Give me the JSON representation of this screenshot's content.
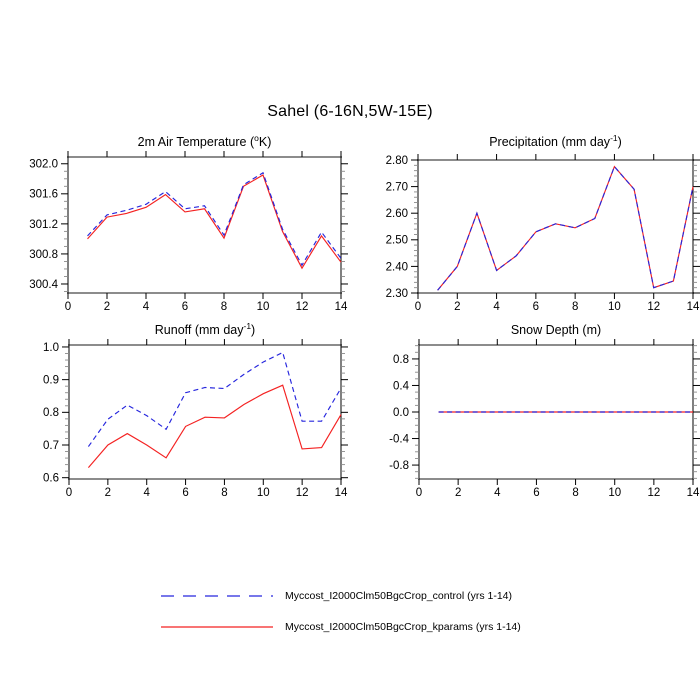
{
  "figure": {
    "title": "Sahel (6-16N,5W-15E)"
  },
  "chart_data": [
    {
      "id": "air_temperature",
      "type": "line",
      "title": "2m Air Temperature (oK)",
      "title_parts": [
        {
          "t": "2m Air Temperature ("
        },
        {
          "t": "o",
          "sup": true
        },
        {
          "t": "K)"
        }
      ],
      "xlabel": "",
      "ylabel": "",
      "x": [
        1,
        2,
        3,
        4,
        5,
        6,
        7,
        8,
        9,
        10,
        11,
        12,
        13,
        14
      ],
      "xlim": [
        0,
        14
      ],
      "x_ticks": [
        0,
        2,
        4,
        6,
        8,
        10,
        12,
        14
      ],
      "x_tick_labels": [
        "0",
        "2",
        "4",
        "6",
        "8",
        "10",
        "12",
        "14"
      ],
      "ylim": [
        300.28,
        302.09
      ],
      "y_ticks": [
        300.4,
        300.8,
        301.2,
        301.6,
        302.0
      ],
      "y_tick_labels": [
        "300.4",
        "300.8",
        "301.2",
        "301.6",
        "302.0"
      ],
      "y_minor_step": 0.1,
      "series": [
        {
          "name": "control",
          "color": "#2626dd",
          "dashed": true,
          "values": [
            301.04,
            301.32,
            301.38,
            301.46,
            301.63,
            301.4,
            301.44,
            301.05,
            301.72,
            301.88,
            301.13,
            300.65,
            301.09,
            300.74
          ]
        },
        {
          "name": "kparams",
          "color": "#f42222",
          "dashed": false,
          "values": [
            301.0,
            301.29,
            301.34,
            301.42,
            301.59,
            301.36,
            301.4,
            301.01,
            301.7,
            301.85,
            301.1,
            300.61,
            301.04,
            300.69
          ]
        }
      ]
    },
    {
      "id": "precipitation",
      "type": "line",
      "title": "Precipitation (mm day-1)",
      "title_parts": [
        {
          "t": "Precipitation (mm day"
        },
        {
          "t": "-1",
          "sup": true
        },
        {
          "t": ")"
        }
      ],
      "xlabel": "",
      "ylabel": "",
      "x": [
        1,
        2,
        3,
        4,
        5,
        6,
        7,
        8,
        9,
        10,
        11,
        12,
        13,
        14
      ],
      "xlim": [
        0,
        14
      ],
      "x_ticks": [
        0,
        2,
        4,
        6,
        8,
        10,
        12,
        14
      ],
      "x_tick_labels": [
        "0",
        "2",
        "4",
        "6",
        "8",
        "10",
        "12",
        "14"
      ],
      "ylim": [
        2.3,
        2.8
      ],
      "y_ticks": [
        2.3,
        2.4,
        2.5,
        2.6,
        2.7,
        2.8
      ],
      "y_tick_labels": [
        "2.30",
        "2.40",
        "2.50",
        "2.60",
        "2.70",
        "2.80"
      ],
      "y_minor_step": 0.02,
      "series": [
        {
          "name": "control",
          "color": "#2626dd",
          "dashed": true,
          "values": [
            2.31,
            2.4,
            2.6,
            2.385,
            2.44,
            2.53,
            2.56,
            2.545,
            2.58,
            2.775,
            2.69,
            2.32,
            2.345,
            2.7
          ]
        },
        {
          "name": "kparams",
          "color": "#f42222",
          "dashed": false,
          "values": [
            2.31,
            2.4,
            2.6,
            2.385,
            2.44,
            2.53,
            2.56,
            2.545,
            2.58,
            2.775,
            2.69,
            2.32,
            2.345,
            2.7
          ]
        }
      ]
    },
    {
      "id": "runoff",
      "type": "line",
      "title": "Runoff (mm day-1)",
      "title_parts": [
        {
          "t": "Runoff (mm day"
        },
        {
          "t": "-1",
          "sup": true
        },
        {
          "t": ")"
        }
      ],
      "xlabel": "",
      "ylabel": "",
      "x": [
        1,
        2,
        3,
        4,
        5,
        6,
        7,
        8,
        9,
        10,
        11,
        12,
        13,
        14
      ],
      "xlim": [
        0,
        14
      ],
      "x_ticks": [
        0,
        2,
        4,
        6,
        8,
        10,
        12,
        14
      ],
      "x_tick_labels": [
        "0",
        "2",
        "4",
        "6",
        "8",
        "10",
        "12",
        "14"
      ],
      "ylim": [
        0.596,
        1.006
      ],
      "y_ticks": [
        0.6,
        0.7,
        0.8,
        0.9,
        1.0
      ],
      "y_tick_labels": [
        "0.6",
        "0.7",
        "0.8",
        "0.9",
        "1.0"
      ],
      "y_minor_step": 0.02,
      "series": [
        {
          "name": "control",
          "color": "#2626dd",
          "dashed": true,
          "values": [
            0.695,
            0.779,
            0.822,
            0.79,
            0.748,
            0.86,
            0.876,
            0.873,
            0.916,
            0.954,
            0.983,
            0.773,
            0.773,
            0.874
          ]
        },
        {
          "name": "kparams",
          "color": "#f42222",
          "dashed": false,
          "values": [
            0.631,
            0.7,
            0.735,
            0.7,
            0.661,
            0.757,
            0.785,
            0.783,
            0.824,
            0.857,
            0.883,
            0.688,
            0.692,
            0.793
          ]
        }
      ]
    },
    {
      "id": "snow_depth",
      "type": "line",
      "title": "Snow Depth (m)",
      "title_parts": [
        {
          "t": "Snow Depth (m)"
        }
      ],
      "xlabel": "",
      "ylabel": "",
      "x": [
        1,
        2,
        3,
        4,
        5,
        6,
        7,
        8,
        9,
        10,
        11,
        12,
        13,
        14
      ],
      "xlim": [
        0,
        14
      ],
      "x_ticks": [
        0,
        2,
        4,
        6,
        8,
        10,
        12,
        14
      ],
      "x_tick_labels": [
        "0",
        "2",
        "4",
        "6",
        "8",
        "10",
        "12",
        "14"
      ],
      "ylim": [
        -1.01,
        1.01
      ],
      "y_ticks": [
        -0.8,
        -0.4,
        0.0,
        0.4,
        0.8
      ],
      "y_tick_labels": [
        "-0.8",
        "-0.4",
        "0.0",
        "0.4",
        "0.8"
      ],
      "y_minor_step": 0.1,
      "series": [
        {
          "name": "control",
          "color": "#2626dd",
          "dashed": true,
          "values": [
            0,
            0,
            0,
            0,
            0,
            0,
            0,
            0,
            0,
            0,
            0,
            0,
            0,
            0
          ]
        },
        {
          "name": "kparams",
          "color": "#f42222",
          "dashed": false,
          "values": [
            0,
            0,
            0,
            0,
            0,
            0,
            0,
            0,
            0,
            0,
            0,
            0,
            0,
            0
          ]
        }
      ]
    }
  ],
  "legend": {
    "entries": [
      {
        "label": "Myccost_I2000Clm50BgcCrop_control (yrs 1-14)",
        "color": "#2626dd",
        "style": "dashed"
      },
      {
        "label": "Myccost_I2000Clm50BgcCrop_kparams (yrs 1-14)",
        "color": "#f42222",
        "style": "solid"
      }
    ]
  },
  "style_colors": {
    "frame_gray": "#7b7b7b",
    "axis_black": "#000000",
    "minor_tick": "#8a8a8a"
  }
}
